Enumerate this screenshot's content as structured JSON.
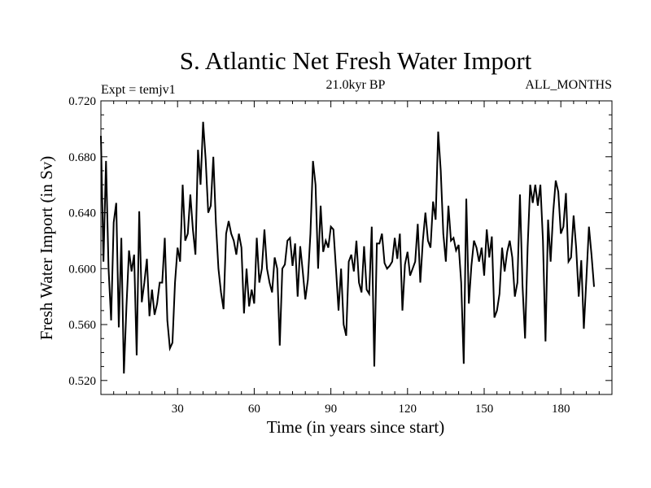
{
  "chart_data": {
    "type": "line",
    "title": "S. Atlantic Net Fresh Water Import",
    "subtitle_left": "Expt = temjv1",
    "subtitle_center": "21.0kyr BP",
    "subtitle_right": "ALL_MONTHS",
    "xlabel": "Time (in years since start)",
    "ylabel": "Fresh Water Import (in Sv)",
    "xlim": [
      0,
      200
    ],
    "ylim": [
      0.51,
      0.72
    ],
    "x_ticks": [
      30,
      60,
      90,
      120,
      150,
      180
    ],
    "x_tick_labels": [
      "30",
      "60",
      "90",
      "120",
      "150",
      "180"
    ],
    "y_ticks": [
      0.52,
      0.56,
      0.6,
      0.64,
      0.68,
      0.72
    ],
    "y_tick_labels": [
      "0.520",
      "0.560",
      "0.600",
      "0.640",
      "0.680",
      "0.720"
    ],
    "grid": false,
    "series": [
      {
        "name": "Fresh Water Import",
        "x_start": 0,
        "x_step": 1,
        "values": [
          0.695,
          0.605,
          0.677,
          0.6,
          0.563,
          0.633,
          0.647,
          0.558,
          0.622,
          0.525,
          0.573,
          0.613,
          0.598,
          0.61,
          0.538,
          0.641,
          0.576,
          0.59,
          0.607,
          0.566,
          0.585,
          0.567,
          0.575,
          0.59,
          0.59,
          0.622,
          0.563,
          0.543,
          0.547,
          0.59,
          0.615,
          0.605,
          0.66,
          0.62,
          0.625,
          0.653,
          0.628,
          0.61,
          0.685,
          0.66,
          0.705,
          0.678,
          0.64,
          0.645,
          0.68,
          0.633,
          0.6,
          0.583,
          0.571,
          0.625,
          0.634,
          0.625,
          0.62,
          0.61,
          0.625,
          0.615,
          0.568,
          0.6,
          0.573,
          0.585,
          0.575,
          0.622,
          0.59,
          0.6,
          0.628,
          0.6,
          0.59,
          0.583,
          0.608,
          0.6,
          0.545,
          0.6,
          0.603,
          0.62,
          0.622,
          0.602,
          0.618,
          0.58,
          0.616,
          0.598,
          0.578,
          0.592,
          0.625,
          0.677,
          0.66,
          0.6,
          0.645,
          0.612,
          0.62,
          0.615,
          0.63,
          0.628,
          0.6,
          0.57,
          0.6,
          0.56,
          0.552,
          0.605,
          0.61,
          0.598,
          0.62,
          0.59,
          0.583,
          0.616,
          0.585,
          0.582,
          0.63,
          0.53,
          0.618,
          0.618,
          0.625,
          0.604,
          0.6,
          0.602,
          0.605,
          0.622,
          0.607,
          0.625,
          0.57,
          0.603,
          0.612,
          0.595,
          0.6,
          0.605,
          0.632,
          0.59,
          0.62,
          0.64,
          0.62,
          0.615,
          0.648,
          0.635,
          0.698,
          0.67,
          0.625,
          0.605,
          0.645,
          0.62,
          0.622,
          0.613,
          0.617,
          0.59,
          0.532,
          0.65,
          0.575,
          0.602,
          0.62,
          0.615,
          0.605,
          0.615,
          0.595,
          0.628,
          0.608,
          0.623,
          0.565,
          0.57,
          0.582,
          0.615,
          0.598,
          0.612,
          0.62,
          0.608,
          0.58,
          0.59,
          0.653,
          0.588,
          0.55,
          0.615,
          0.66,
          0.647,
          0.66,
          0.645,
          0.66,
          0.62,
          0.548,
          0.635,
          0.605,
          0.64,
          0.663,
          0.655,
          0.625,
          0.63,
          0.654,
          0.605,
          0.608,
          0.638,
          0.615,
          0.58,
          0.606,
          0.557,
          0.593,
          0.63,
          0.61,
          0.587
        ]
      }
    ]
  }
}
